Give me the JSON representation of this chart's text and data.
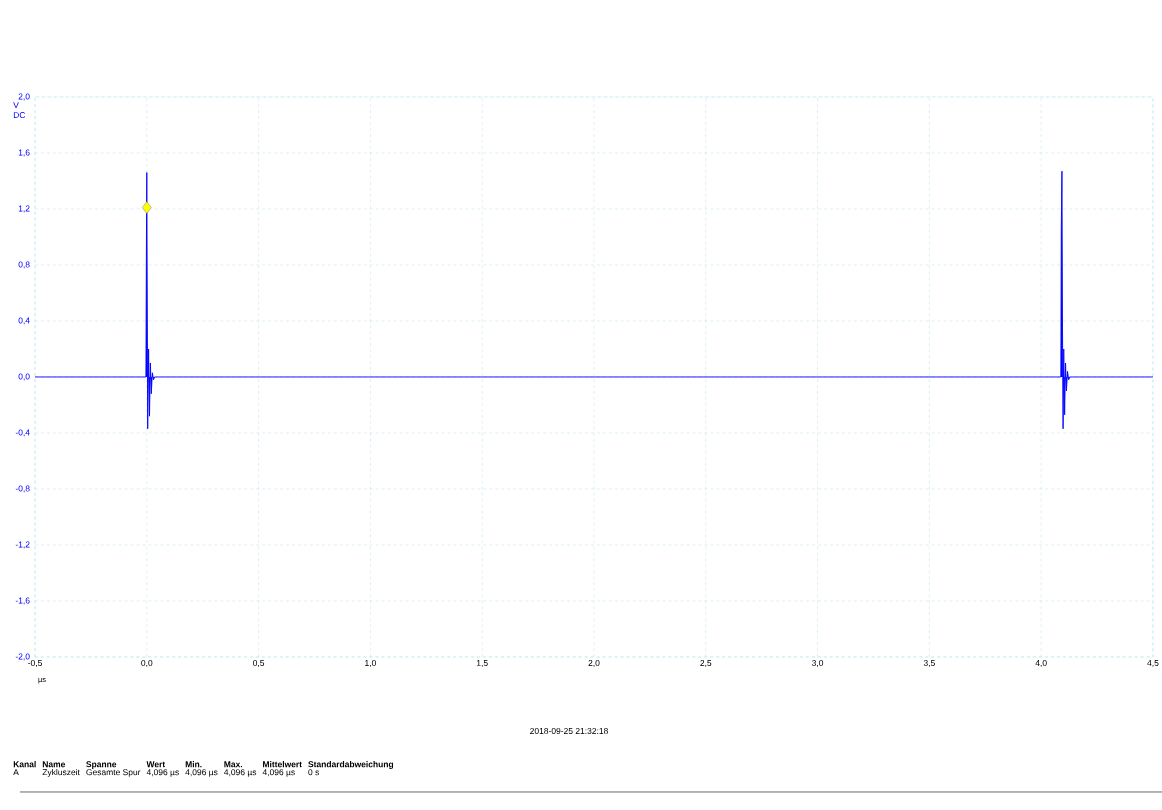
{
  "chart_data": {
    "type": "line",
    "xlabel": "µs",
    "ylabel": "V DC",
    "xlim": [
      -0.5,
      4.5
    ],
    "ylim": [
      -2.0,
      2.0
    ],
    "xticks": [
      {
        "value": -0.5,
        "label": "-0,5"
      },
      {
        "value": 0,
        "label": "0,0"
      },
      {
        "value": 0.5,
        "label": "0,5"
      },
      {
        "value": 1,
        "label": "1,0"
      },
      {
        "value": 1.5,
        "label": "1,5"
      },
      {
        "value": 2,
        "label": "2,0"
      },
      {
        "value": 2.5,
        "label": "2,5"
      },
      {
        "value": 3,
        "label": "3,0"
      },
      {
        "value": 3.5,
        "label": "3,5"
      },
      {
        "value": 4,
        "label": "4,0"
      },
      {
        "value": 4.5,
        "label": "4,5"
      }
    ],
    "yticks": [
      {
        "value": -2,
        "label": "-2,0"
      },
      {
        "value": -1.6,
        "label": "-1,6"
      },
      {
        "value": -1.2,
        "label": "-1,2"
      },
      {
        "value": -0.8,
        "label": "-0,8"
      },
      {
        "value": -0.4,
        "label": "-0,4"
      },
      {
        "value": 0,
        "label": "0,0"
      },
      {
        "value": 0.4,
        "label": "0,4"
      },
      {
        "value": 0.8,
        "label": "0,8"
      },
      {
        "value": 1.2,
        "label": "1,2"
      },
      {
        "value": 1.6,
        "label": "1,6"
      },
      {
        "value": 2,
        "label": "2,0"
      }
    ],
    "grid": true,
    "series": [
      {
        "color": "#0000ff",
        "marker": "none",
        "x": [
          -0.5,
          -0.004,
          -0.002,
          0.0,
          0.002,
          0.004,
          0.008,
          0.012,
          0.016,
          0.02,
          0.025,
          0.03,
          0.035,
          4.088,
          4.09,
          4.093,
          4.095,
          4.098,
          4.101,
          4.105,
          4.109,
          4.113,
          4.118,
          4.123,
          4.128,
          4.5
        ],
        "values": [
          0,
          0,
          0.83,
          1.46,
          0.52,
          -0.37,
          0.2,
          -0.28,
          0.1,
          -0.12,
          0.03,
          -0.02,
          0,
          0,
          1.06,
          1.47,
          0.5,
          -0.37,
          0.2,
          -0.27,
          0.1,
          -0.1,
          0.04,
          -0.02,
          0,
          0
        ]
      },
      {
        "type": "scatter",
        "color": "#ffff00",
        "marker": "diamond",
        "x": [
          0.0
        ],
        "values": [
          1.21
        ]
      }
    ],
    "annotations": [
      "2018-09-25 21:32:18",
      "Kanal",
      "Name",
      "Spanne",
      "Wert",
      "Min.",
      "Max.",
      "Mittelwert",
      "Standardabweichung",
      "A",
      "Zykluszeit",
      "Gesamte Spur",
      "4,096 µs",
      "4,096 µs",
      "4,096 µs",
      "4,096 µs",
      "0 s"
    ]
  }
}
